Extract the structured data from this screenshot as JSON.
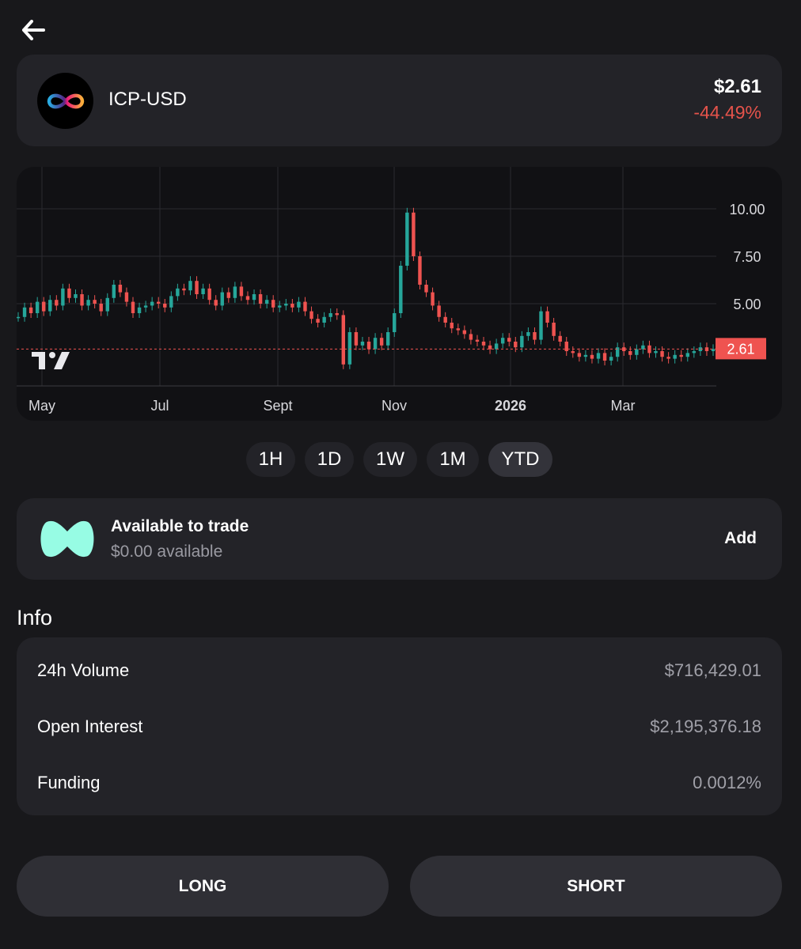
{
  "nav": {
    "back_icon": "arrow-left-icon"
  },
  "ticker": {
    "logo_icon": "infinity-icon",
    "name": "ICP-USD",
    "price": "$2.61",
    "change": "-44.49%",
    "change_color": "#e5534b"
  },
  "chart_data": {
    "type": "candlestick",
    "x_labels": [
      "May",
      "Jul",
      "Sept",
      "Nov",
      "2026",
      "Mar"
    ],
    "y_ticks": [
      "10.00",
      "7.50",
      "5.00"
    ],
    "ylim": [
      0,
      11
    ],
    "current_value": 2.61,
    "current_label": "2.61",
    "up_color": "#26a69a",
    "down_color": "#ef5350",
    "grid": true,
    "series": [
      {
        "values": [
          4.3,
          4.8,
          4.5,
          5.1,
          4.6,
          5.2,
          4.9,
          5.8,
          5.3,
          5.5,
          4.9,
          5.2,
          5.0,
          4.6,
          5.3,
          6.0,
          5.6,
          5.1,
          4.5,
          4.8,
          4.9,
          5.1,
          5.0,
          4.8,
          5.4,
          5.8,
          5.7,
          6.2,
          5.5,
          5.8,
          5.2,
          4.9,
          5.6,
          5.3,
          5.9,
          5.4,
          5.2,
          5.5,
          5.0,
          5.2,
          4.8,
          4.9,
          5.0,
          4.8,
          5.1,
          4.6,
          4.2,
          4.0,
          4.3,
          4.5,
          4.4,
          1.8,
          3.5,
          2.8,
          3.0,
          2.6,
          3.2,
          2.8,
          3.5,
          4.5,
          7.0,
          9.8,
          7.5,
          6.0,
          5.6,
          4.9,
          4.3,
          4.0,
          3.7,
          3.6,
          3.4,
          3.1,
          3.0,
          2.8,
          2.6,
          2.9,
          3.2,
          3.0,
          2.7,
          3.3,
          3.5,
          3.1,
          4.6,
          4.0,
          3.3,
          3.0,
          2.5,
          2.4,
          2.2,
          2.3,
          2.1,
          2.4,
          2.0,
          2.2,
          2.7,
          2.5,
          2.3,
          2.6,
          2.8,
          2.4,
          2.5,
          2.2,
          2.1,
          2.3,
          2.2,
          2.4,
          2.5,
          2.7,
          2.5,
          2.61
        ]
      }
    ]
  },
  "range_tabs": [
    {
      "label": "1H"
    },
    {
      "label": "1D"
    },
    {
      "label": "1W"
    },
    {
      "label": "1M"
    },
    {
      "label": "YTD",
      "active": true
    }
  ],
  "trade": {
    "logo_icon": "hyperliquid-logo-icon",
    "title": "Available to trade",
    "subtitle": "$0.00 available",
    "add_label": "Add",
    "accent": "#97fce4"
  },
  "info": {
    "heading": "Info",
    "rows": [
      {
        "label": "24h Volume",
        "value": "$716,429.01"
      },
      {
        "label": "Open Interest",
        "value": "$2,195,376.18"
      },
      {
        "label": "Funding",
        "value": "0.0012%"
      }
    ]
  },
  "actions": {
    "long_label": "LONG",
    "short_label": "SHORT"
  }
}
